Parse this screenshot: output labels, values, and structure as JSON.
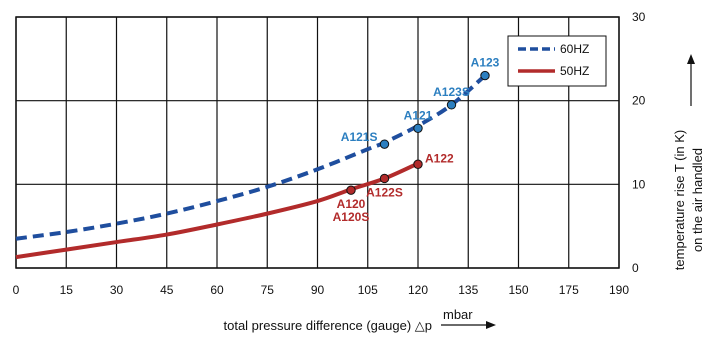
{
  "chart_data": {
    "type": "line",
    "xlabel": "total pressure difference (gauge) △p",
    "xunit": "mbar",
    "ylabel_line1": "temperature rise T (in K)",
    "ylabel_line2": "on the air handled",
    "xlim": [
      0,
      190
    ],
    "ylim": [
      0,
      30
    ],
    "x_ticks": [
      0,
      15,
      30,
      45,
      60,
      75,
      90,
      105,
      120,
      135,
      150,
      175,
      190
    ],
    "y_ticks": [
      0,
      10,
      20,
      30
    ],
    "grid": true,
    "legend_position": "top-right",
    "series": [
      {
        "name": "60HZ",
        "style": "dashed",
        "color": "#1f4e9e",
        "x": [
          0,
          15,
          30,
          45,
          60,
          75,
          90,
          105,
          110,
          120,
          130,
          140
        ],
        "y": [
          3.5,
          4.3,
          5.3,
          6.5,
          8.0,
          9.7,
          11.8,
          14.2,
          15.0,
          17.0,
          19.5,
          23.0
        ]
      },
      {
        "name": "50HZ",
        "style": "solid",
        "color": "#b22b2b",
        "x": [
          0,
          15,
          30,
          45,
          60,
          75,
          90,
          100,
          110,
          120
        ],
        "y": [
          1.3,
          2.2,
          3.1,
          4.0,
          5.2,
          6.5,
          8.0,
          9.4,
          10.7,
          12.5
        ]
      }
    ],
    "points": [
      {
        "label": "A121S",
        "x": 110,
        "y": 14.8,
        "color": "#2c7fc0",
        "label_side": "left"
      },
      {
        "label": "A121",
        "x": 120,
        "y": 16.7,
        "color": "#2c7fc0",
        "label_side": "above"
      },
      {
        "label": "A123S",
        "x": 130,
        "y": 19.5,
        "color": "#2c7fc0",
        "label_side": "above"
      },
      {
        "label": "A123",
        "x": 140,
        "y": 23.0,
        "color": "#2c7fc0",
        "label_side": "above"
      },
      {
        "label": "A120",
        "label2": "A120S",
        "x": 100,
        "y": 9.3,
        "color": "#b22b2b",
        "label_side": "below"
      },
      {
        "label": "A122S",
        "x": 110,
        "y": 10.7,
        "color": "#b22b2b",
        "label_side": "below"
      },
      {
        "label": "A122",
        "x": 120,
        "y": 12.4,
        "color": "#b22b2b",
        "label_side": "right"
      }
    ]
  }
}
